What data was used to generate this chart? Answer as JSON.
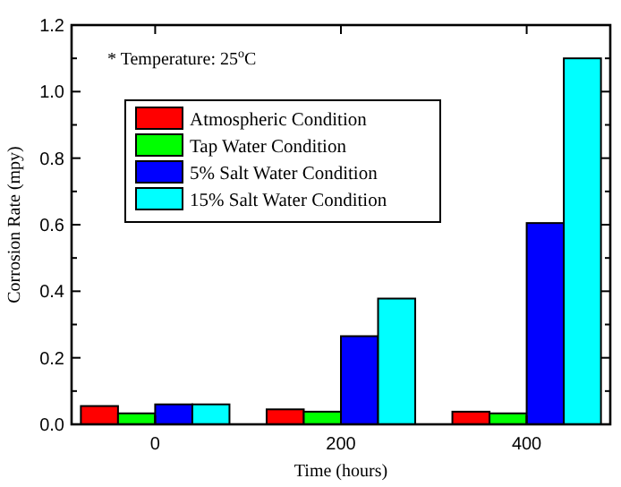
{
  "chart_data": {
    "type": "bar",
    "xlabel": "Time (hours)",
    "ylabel": "Corrosion Rate (mpy)",
    "categories": [
      "0",
      "200",
      "400"
    ],
    "series": [
      {
        "name": "Atmospheric Condition",
        "color": "#ff0000",
        "values": [
          0.055,
          0.045,
          0.038
        ]
      },
      {
        "name": "Tap Water Condition",
        "color": "#00ff00",
        "values": [
          0.033,
          0.038,
          0.033
        ]
      },
      {
        "name": "5% Salt Water Condition",
        "color": "#0000ff",
        "values": [
          0.06,
          0.265,
          0.605
        ]
      },
      {
        "name": "15% Salt Water Condition",
        "color": "#00ffff",
        "values": [
          0.06,
          0.378,
          1.1
        ]
      }
    ],
    "ylim": [
      0,
      1.2
    ],
    "yticks": [
      {
        "value": 0,
        "label": "0.0"
      },
      {
        "value": 0.1,
        "label": null
      },
      0.2,
      {
        "value": 0.3,
        "label": null
      },
      0.4,
      {
        "value": 0.5,
        "label": null
      },
      0.6,
      {
        "value": 0.7,
        "label": null
      },
      0.8,
      {
        "value": 0.9,
        "label": null
      },
      {
        "value": 1,
        "label": "1.0"
      },
      {
        "value": 1.1,
        "label": null
      },
      1.2
    ],
    "annotations": [
      "* Temperature: 25$^{o}$C"
    ],
    "legend": "top left",
    "grid": false
  }
}
